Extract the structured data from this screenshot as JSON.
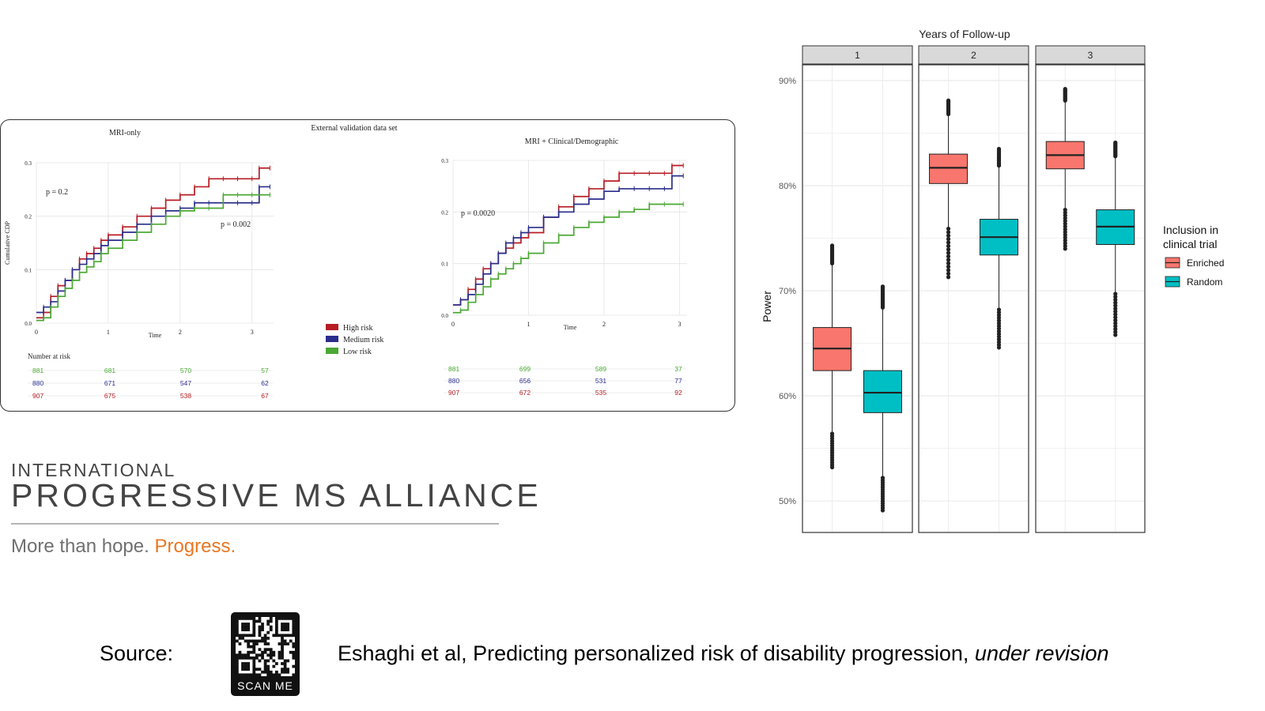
{
  "chart_data": [
    {
      "type": "line",
      "title": "External validation data set",
      "panels": [
        {
          "title": "MRI-only",
          "ylabel": "Cumulative CDP",
          "xlabel": "Time",
          "xlim": [
            0,
            3.3
          ],
          "ylim": [
            0,
            0.3
          ],
          "x_ticks": [
            "0",
            "1",
            "2",
            "3"
          ],
          "y_ticks": [
            "0.0",
            "0.1",
            "0.2",
            "0.3"
          ],
          "annotations": [
            "p = 0.2",
            "p = 0.002"
          ],
          "series": [
            {
              "name": "High risk",
              "color": "#b81c24",
              "x": [
                0,
                0.1,
                0.2,
                0.3,
                0.4,
                0.5,
                0.6,
                0.7,
                0.8,
                0.9,
                1.0,
                1.2,
                1.4,
                1.6,
                1.8,
                2.0,
                2.2,
                2.4,
                2.6,
                2.8,
                3.0,
                3.1,
                3.25
              ],
              "y": [
                0.01,
                0.02,
                0.05,
                0.07,
                0.08,
                0.1,
                0.12,
                0.13,
                0.14,
                0.155,
                0.165,
                0.18,
                0.2,
                0.215,
                0.23,
                0.24,
                0.255,
                0.27,
                0.27,
                0.27,
                0.27,
                0.29,
                0.29
              ]
            },
            {
              "name": "Medium risk",
              "color": "#2a2d8c",
              "x": [
                0,
                0.1,
                0.2,
                0.3,
                0.4,
                0.5,
                0.6,
                0.7,
                0.8,
                0.9,
                1.0,
                1.2,
                1.4,
                1.6,
                1.8,
                2.0,
                2.2,
                2.4,
                2.6,
                2.8,
                3.0,
                3.1,
                3.25
              ],
              "y": [
                0.02,
                0.03,
                0.04,
                0.06,
                0.08,
                0.1,
                0.11,
                0.12,
                0.13,
                0.145,
                0.155,
                0.17,
                0.185,
                0.2,
                0.21,
                0.215,
                0.225,
                0.225,
                0.225,
                0.225,
                0.225,
                0.255,
                0.255
              ]
            },
            {
              "name": "Low risk",
              "color": "#4aa833",
              "x": [
                0,
                0.1,
                0.2,
                0.3,
                0.4,
                0.5,
                0.6,
                0.7,
                0.8,
                0.9,
                1.0,
                1.2,
                1.4,
                1.6,
                1.8,
                2.0,
                2.2,
                2.4,
                2.6,
                2.8,
                3.0,
                3.25
              ],
              "y": [
                0.005,
                0.01,
                0.03,
                0.05,
                0.065,
                0.08,
                0.095,
                0.105,
                0.115,
                0.13,
                0.14,
                0.155,
                0.17,
                0.185,
                0.2,
                0.21,
                0.215,
                0.215,
                0.24,
                0.24,
                0.24,
                0.24
              ]
            }
          ],
          "risk_table": {
            "title": "Number at risk",
            "rows": [
              {
                "group": "Low risk",
                "color": "#4aa833",
                "values": [
                  "881",
                  "681",
                  "570",
                  "57"
                ]
              },
              {
                "group": "Medium risk",
                "color": "#2a2d8c",
                "values": [
                  "880",
                  "671",
                  "547",
                  "62"
                ]
              },
              {
                "group": "High risk",
                "color": "#b81c24",
                "values": [
                  "907",
                  "675",
                  "538",
                  "67"
                ]
              }
            ]
          }
        },
        {
          "title": "MRI + Clinical/Demographic",
          "xlabel": "Time",
          "xlim": [
            0,
            3.1
          ],
          "ylim": [
            0,
            0.3
          ],
          "x_ticks": [
            "0",
            "1",
            "2",
            "3"
          ],
          "y_ticks": [
            "0.0",
            "0.1",
            "0.2",
            "0.3"
          ],
          "annotations": [
            "p = 0.0020"
          ],
          "series": [
            {
              "name": "High risk",
              "color": "#b81c24",
              "x": [
                0,
                0.1,
                0.2,
                0.3,
                0.4,
                0.5,
                0.6,
                0.7,
                0.8,
                0.9,
                1.0,
                1.2,
                1.4,
                1.6,
                1.8,
                2.0,
                2.2,
                2.4,
                2.6,
                2.8,
                2.9,
                3.05
              ],
              "y": [
                0.02,
                0.03,
                0.05,
                0.07,
                0.09,
                0.1,
                0.12,
                0.13,
                0.14,
                0.15,
                0.16,
                0.19,
                0.21,
                0.23,
                0.245,
                0.26,
                0.275,
                0.275,
                0.275,
                0.275,
                0.29,
                0.29
              ]
            },
            {
              "name": "Medium risk",
              "color": "#2a2d8c",
              "x": [
                0,
                0.1,
                0.2,
                0.3,
                0.4,
                0.5,
                0.6,
                0.7,
                0.8,
                0.9,
                1.0,
                1.2,
                1.4,
                1.6,
                1.8,
                2.0,
                2.2,
                2.4,
                2.6,
                2.8,
                2.9,
                3.05
              ],
              "y": [
                0.02,
                0.03,
                0.04,
                0.06,
                0.08,
                0.1,
                0.12,
                0.14,
                0.15,
                0.16,
                0.17,
                0.19,
                0.2,
                0.215,
                0.225,
                0.24,
                0.245,
                0.245,
                0.245,
                0.245,
                0.27,
                0.27
              ]
            },
            {
              "name": "Low risk",
              "color": "#4aa833",
              "x": [
                0,
                0.1,
                0.2,
                0.3,
                0.4,
                0.5,
                0.6,
                0.7,
                0.8,
                0.9,
                1.0,
                1.2,
                1.4,
                1.6,
                1.8,
                2.0,
                2.2,
                2.4,
                2.6,
                2.8,
                3.05
              ],
              "y": [
                0.005,
                0.01,
                0.025,
                0.04,
                0.055,
                0.07,
                0.08,
                0.09,
                0.1,
                0.11,
                0.12,
                0.14,
                0.155,
                0.17,
                0.18,
                0.19,
                0.2,
                0.205,
                0.215,
                0.215,
                0.215
              ]
            }
          ],
          "risk_table": {
            "rows": [
              {
                "group": "Low risk",
                "color": "#4aa833",
                "values": [
                  "881",
                  "699",
                  "589",
                  "37"
                ]
              },
              {
                "group": "Medium risk",
                "color": "#2a2d8c",
                "values": [
                  "880",
                  "656",
                  "531",
                  "77"
                ]
              },
              {
                "group": "High risk",
                "color": "#b81c24",
                "values": [
                  "907",
                  "672",
                  "535",
                  "92"
                ]
              }
            ]
          }
        }
      ],
      "legend": {
        "placement": "bottom-center",
        "entries": [
          "High risk",
          "Medium risk",
          "Low risk"
        ]
      }
    },
    {
      "type": "box",
      "title": "Years of Follow-up",
      "ylabel": "Power",
      "ylim": [
        47,
        91.5
      ],
      "y_ticks": [
        "50%",
        "60%",
        "70%",
        "80%",
        "90%"
      ],
      "y_tick_values": [
        50,
        60,
        70,
        80,
        90
      ],
      "facets": [
        "1",
        "2",
        "3"
      ],
      "legend": {
        "title": "Inclusion in clinical trial",
        "placement": "right"
      },
      "series": [
        {
          "name": "Enriched",
          "color": "#f8766d",
          "boxes": [
            {
              "facet": "1",
              "min": 53.2,
              "q1": 62.4,
              "median": 64.5,
              "q3": 66.5,
              "max": 74.3,
              "whisker_low": 56.4,
              "whisker_high": 72.6
            },
            {
              "facet": "2",
              "min": 71.3,
              "q1": 80.2,
              "median": 81.7,
              "q3": 83.0,
              "max": 88.1,
              "whisker_low": 75.9,
              "whisker_high": 86.8
            },
            {
              "facet": "3",
              "min": 74.0,
              "q1": 81.6,
              "median": 82.9,
              "q3": 84.2,
              "max": 89.2,
              "whisker_low": 77.7,
              "whisker_high": 88.1
            }
          ]
        },
        {
          "name": "Random",
          "color": "#00bfc4",
          "boxes": [
            {
              "facet": "1",
              "min": 49.1,
              "q1": 58.4,
              "median": 60.3,
              "q3": 62.4,
              "max": 70.4,
              "whisker_low": 52.2,
              "whisker_high": 68.4
            },
            {
              "facet": "2",
              "min": 64.6,
              "q1": 73.4,
              "median": 75.1,
              "q3": 76.8,
              "max": 83.5,
              "whisker_low": 68.2,
              "whisker_high": 81.9
            },
            {
              "facet": "3",
              "min": 65.8,
              "q1": 74.4,
              "median": 76.1,
              "q3": 77.7,
              "max": 84.1,
              "whisker_low": 69.7,
              "whisker_high": 82.8
            }
          ]
        }
      ]
    }
  ],
  "logo": {
    "line1": "INTERNATIONAL",
    "line2": "PROGRESSIVE MS ALLIANCE",
    "tagline_plain": "More than hope. ",
    "tagline_accent": "Progress.",
    "accent_color": "#e87722"
  },
  "source": {
    "label": "Source:",
    "qr_caption": "SCAN ME",
    "citation": "Eshaghi et al, Predicting personalized risk of disability progression, ",
    "citation_italic": "under revision"
  }
}
